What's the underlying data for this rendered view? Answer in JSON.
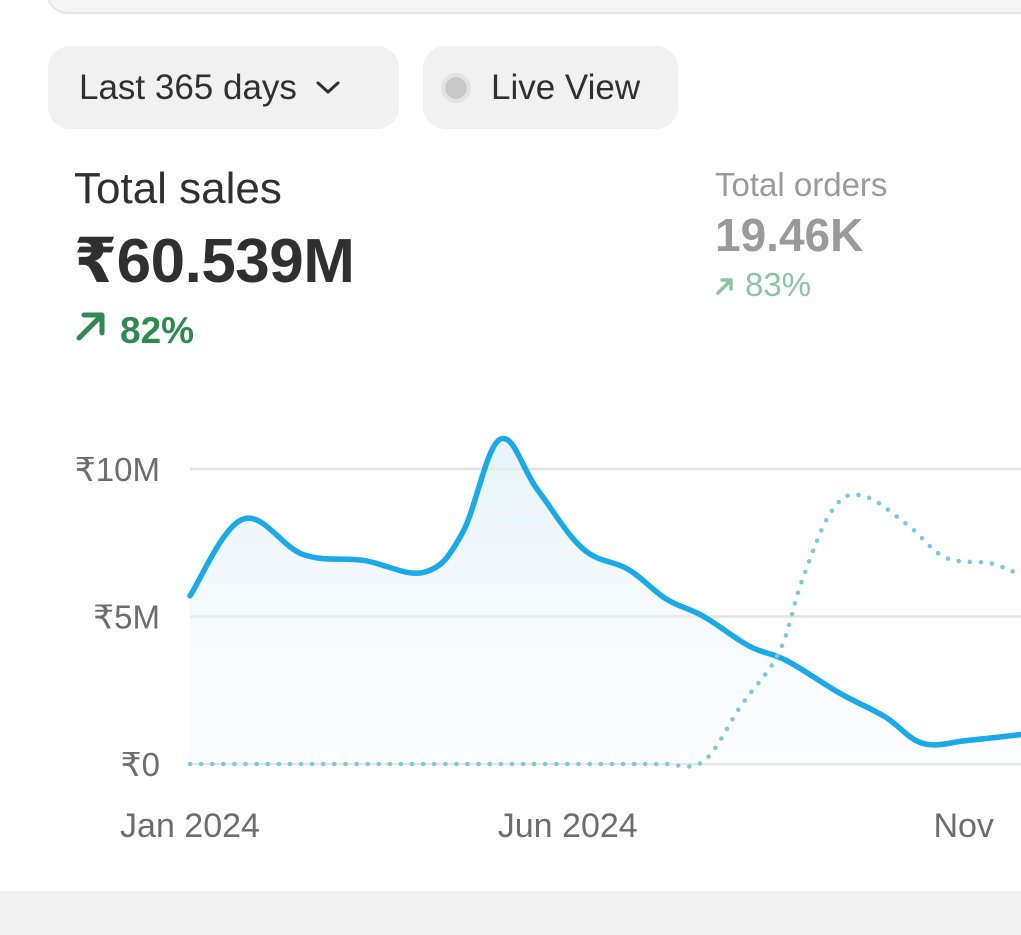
{
  "filters": {
    "date_range": "Last 365 days",
    "live_view": "Live View"
  },
  "metrics": {
    "total_sales": {
      "label": "Total sales",
      "value": "₹60.539M",
      "change": "82%"
    },
    "total_orders": {
      "label": "Total orders",
      "value": "19.46K",
      "change": "83%"
    }
  },
  "colors": {
    "primary_line": "#1aaae8",
    "comparison_line": "#7cc8e2",
    "positive": "#2e8a4f",
    "positive_muted": "#8dc4a3"
  },
  "chart_data": {
    "type": "line",
    "y_tick_labels": [
      "₹0",
      "₹5M",
      "₹10M"
    ],
    "y_ticks": [
      0,
      5,
      10
    ],
    "ylim": [
      0,
      10
    ],
    "x_tick_labels": [
      "Jan 2024",
      "Jun 2024",
      "Nov"
    ],
    "x_ticks": [
      0,
      5,
      10
    ],
    "xlim": [
      0,
      11
    ],
    "grid": true,
    "series": [
      {
        "style": "solid",
        "x": [
          0,
          0.7,
          1.5,
          2.3,
          3.1,
          3.6,
          4.1,
          4.6,
          5.2,
          5.8,
          6.3,
          6.8,
          7.4,
          7.9,
          8.6,
          9.2,
          9.7,
          10.3,
          11
        ],
        "y": [
          5.7,
          8.3,
          7.1,
          6.9,
          6.5,
          7.8,
          11.0,
          9.3,
          7.3,
          6.6,
          5.6,
          5.0,
          4.0,
          3.5,
          2.4,
          1.6,
          0.7,
          0.8,
          1.0
        ]
      },
      {
        "style": "dotted",
        "x": [
          0,
          1,
          2,
          3,
          4,
          5,
          6,
          6.3,
          6.8,
          7.3,
          7.8,
          8.1,
          8.5,
          8.9,
          9.5,
          10.0,
          10.6,
          11
        ],
        "y": [
          0,
          0,
          0,
          0,
          0,
          0,
          0,
          0,
          0.1,
          2.0,
          3.8,
          6.2,
          8.6,
          9.1,
          8.1,
          7.0,
          6.8,
          6.4
        ]
      }
    ]
  }
}
